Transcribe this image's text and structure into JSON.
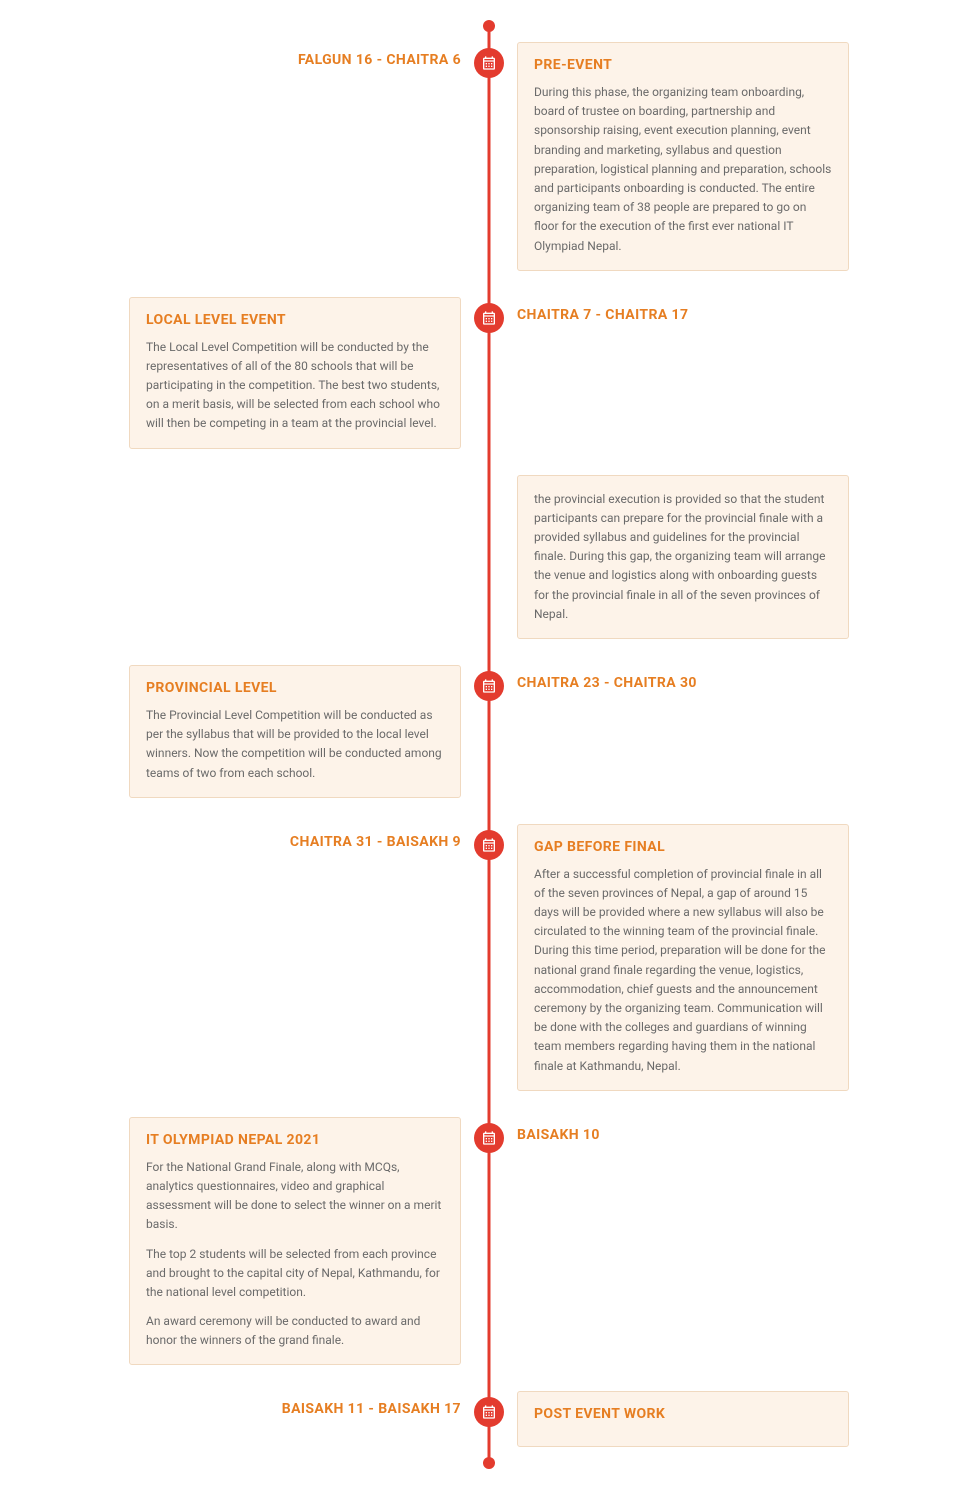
{
  "colors": {
    "accent": "#e33b2e",
    "title": "#e67e22",
    "card_bg": "#fdf3e9",
    "card_border": "#f0d9c0",
    "body_text": "#6a6a6a",
    "page_bg": "#ffffff"
  },
  "timeline": {
    "events": [
      {
        "date": "FALGUN 16 - CHAITRA 6",
        "date_side": "left",
        "card_side": "right",
        "title": "PRE-EVENT",
        "paragraphs": [
          "During this phase, the organizing team onboarding, board of trustee on boarding, partnership and sponsorship raising, event execution planning, event branding and marketing, syllabus and question preparation, logistical planning and preparation, schools and participants onboarding is conducted. The entire organizing team of 38 people are prepared to go on floor for the execution of the first ever national IT Olympiad Nepal."
        ]
      },
      {
        "date": "CHAITRA 7 - CHAITRA 17",
        "date_side": "right",
        "card_side": "left",
        "title": "LOCAL LEVEL EVENT",
        "paragraphs": [
          "The Local Level Competition will be conducted by the representatives of all of the 80 schools that will be participating in the competition. The best two students, on a merit basis, will be selected from each school who will then be competing in a team at the provincial level."
        ]
      },
      {
        "date": "CHAITRA 23 - CHAITRA 30",
        "date_side": "right",
        "card_side": "left",
        "title": "PROVINCIAL LEVEL",
        "paragraphs": [
          "The Provincial Level Competition will be conducted as per the syllabus that will be provided to the local level winners. Now the competition will be conducted among teams of two from each school."
        ]
      },
      {
        "date": "CHAITRA 31 - BAISAKH 9",
        "date_side": "left",
        "card_side": "right",
        "title": "GAP BEFORE FINAL",
        "paragraphs": [
          "After a successful completion of provincial finale in all of the seven provinces of Nepal, a gap of around 15 days will be provided where a new syllabus will also be circulated to the winning team of the provincial finale. During this time period, preparation will be done for the national grand finale regarding the venue, logistics, accommodation, chief guests and the announcement ceremony by the organizing team. Communication will be done with the colleges and guardians of winning team members regarding having them in the national finale at Kathmandu, Nepal."
        ]
      },
      {
        "date": "BAISAKH 10",
        "date_side": "right",
        "card_side": "left",
        "title": "IT OLYMPIAD NEPAL 2021",
        "paragraphs": [
          "For the National Grand Finale, along with MCQs, analytics questionnaires, video and graphical assessment will be done to select the winner on a merit basis.",
          "The top 2 students will be selected from each province and brought to the capital city of Nepal, Kathmandu, for the national level competition.",
          "An award ceremony will be conducted to award and honor the winners of the grand finale."
        ]
      },
      {
        "date": "BAISAKH 11 - BAISAKH 17",
        "date_side": "left",
        "card_side": "right",
        "title": "POST EVENT WORK",
        "paragraphs": []
      }
    ],
    "floating_card": {
      "after_event_index": 1,
      "text": "the provincial execution is provided so that the student participants can prepare for the provincial finale with a provided syllabus and guidelines for the provincial finale. During this gap, the organizing team will arrange the venue and logistics along with onboarding guests for the provincial finale in all of the seven provinces of Nepal."
    }
  }
}
